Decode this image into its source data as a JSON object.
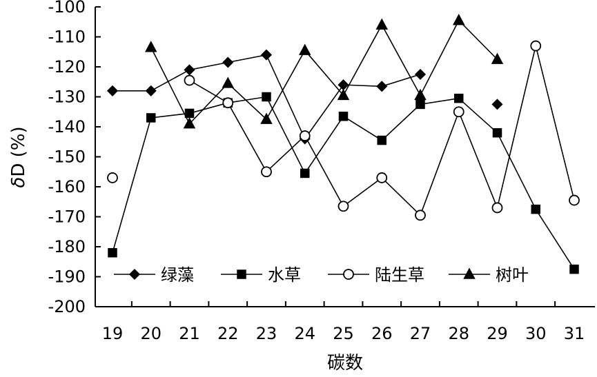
{
  "chart_data": {
    "type": "line",
    "xlabel": "碳数",
    "ylabel_symbol": "δ",
    "ylabel_rest": "D (%)",
    "x": [
      19,
      20,
      21,
      22,
      23,
      24,
      25,
      26,
      27,
      28,
      29,
      30,
      31
    ],
    "xlim": [
      18.5,
      31.5
    ],
    "ylim": [
      -200,
      -100
    ],
    "yticks": [
      -100,
      -110,
      -120,
      -130,
      -140,
      -150,
      -160,
      -170,
      -180,
      -190,
      -200
    ],
    "grid": false,
    "legend_position": "bottom-left",
    "series": [
      {
        "name": "绿藻",
        "marker": "diamond",
        "fill": "#000000",
        "points": [
          [
            19,
            -128
          ],
          [
            20,
            -128
          ],
          [
            21,
            -121
          ],
          [
            22,
            -118.5
          ],
          [
            23,
            -116
          ],
          [
            24,
            -144
          ],
          [
            25,
            -126
          ],
          [
            26,
            -126.5
          ],
          [
            27,
            -122.5
          ]
        ],
        "isolated": [
          [
            29,
            -132.5
          ]
        ]
      },
      {
        "name": "水草",
        "marker": "square",
        "fill": "#000000",
        "points": [
          [
            19,
            -182
          ],
          [
            20,
            -137
          ],
          [
            21,
            -135.5
          ],
          [
            22,
            -132
          ],
          [
            23,
            -130
          ],
          [
            24,
            -155.5
          ],
          [
            25,
            -136.5
          ],
          [
            26,
            -144.5
          ],
          [
            27,
            -132.5
          ],
          [
            28,
            -130.5
          ],
          [
            29,
            -142
          ],
          [
            30,
            -167.5
          ],
          [
            31,
            -187.5
          ]
        ]
      },
      {
        "name": "陆生草",
        "marker": "circle",
        "fill": "#ffffff",
        "points": [
          [
            21,
            -124.5
          ],
          [
            22,
            -132
          ],
          [
            23,
            -155
          ],
          [
            24,
            -143
          ],
          [
            25,
            -166.5
          ],
          [
            26,
            -157
          ],
          [
            27,
            -169.5
          ],
          [
            28,
            -135
          ],
          [
            29,
            -167
          ],
          [
            30,
            -113
          ],
          [
            31,
            -164.5
          ]
        ],
        "isolated": [
          [
            19,
            -157
          ]
        ]
      },
      {
        "name": "树叶",
        "marker": "triangle",
        "fill": "#000000",
        "points": [
          [
            20,
            -113.5
          ],
          [
            21,
            -139
          ],
          [
            22,
            -125.5
          ],
          [
            23,
            -137.5
          ],
          [
            24,
            -114.5
          ],
          [
            25,
            -129.5
          ],
          [
            26,
            -106
          ],
          [
            27,
            -129.5
          ],
          [
            28,
            -104.5
          ],
          [
            29,
            -117.5
          ]
        ]
      }
    ]
  }
}
